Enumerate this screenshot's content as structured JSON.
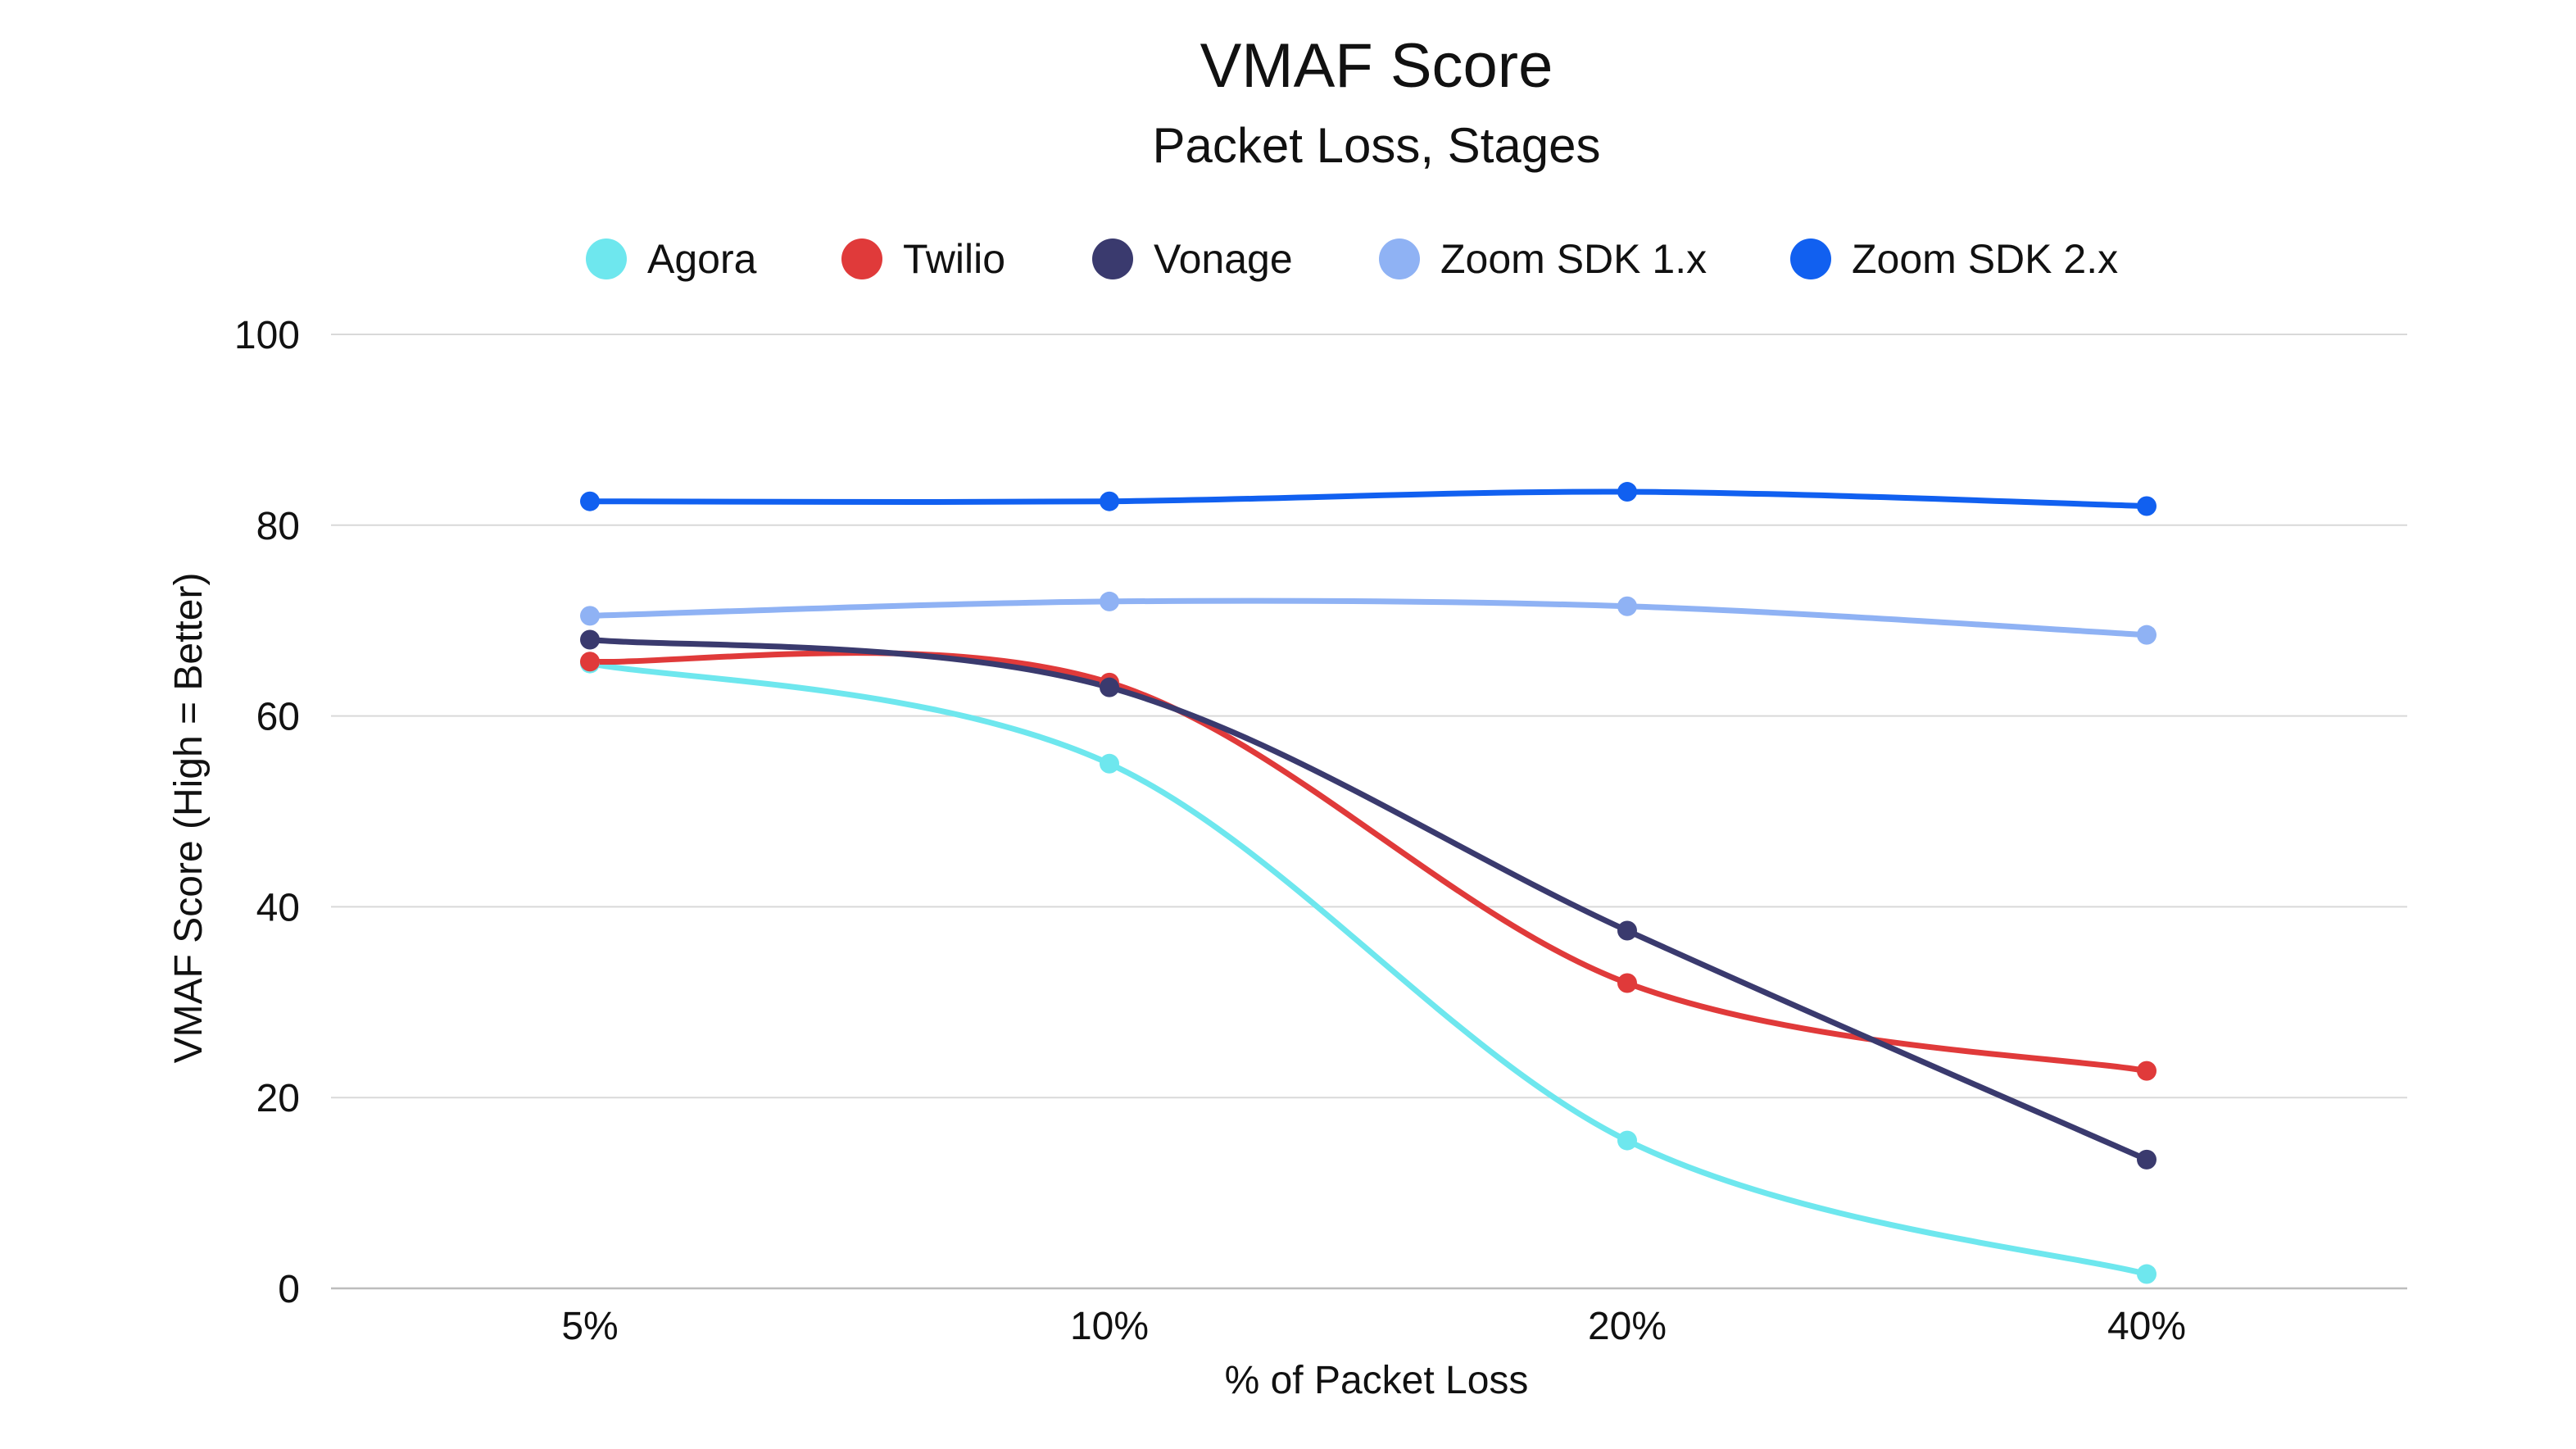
{
  "chart_data": {
    "type": "line",
    "title": "VMAF Score",
    "subtitle": "Packet Loss, Stages",
    "xlabel": "% of Packet Loss",
    "ylabel": "VMAF Score (High = Better)",
    "categories": [
      "5%",
      "10%",
      "20%",
      "40%"
    ],
    "ylim": [
      0,
      100
    ],
    "yticks": [
      0,
      20,
      40,
      60,
      80,
      100
    ],
    "grid": true,
    "legend_position": "top-center",
    "series": [
      {
        "name": "Agora",
        "color": "#6EE7EE",
        "values": [
          65.5,
          55.0,
          15.5,
          1.5
        ]
      },
      {
        "name": "Twilio",
        "color": "#E03A3A",
        "values": [
          65.7,
          63.5,
          32.0,
          22.8
        ]
      },
      {
        "name": "Vonage",
        "color": "#3A3A6E",
        "values": [
          68.0,
          63.0,
          37.5,
          13.5
        ]
      },
      {
        "name": "Zoom SDK 1.x",
        "color": "#8FB2F4",
        "values": [
          70.5,
          72.0,
          71.5,
          68.5
        ]
      },
      {
        "name": "Zoom SDK 2.x",
        "color": "#1160F0",
        "values": [
          82.5,
          82.5,
          83.5,
          82.0
        ]
      }
    ]
  }
}
